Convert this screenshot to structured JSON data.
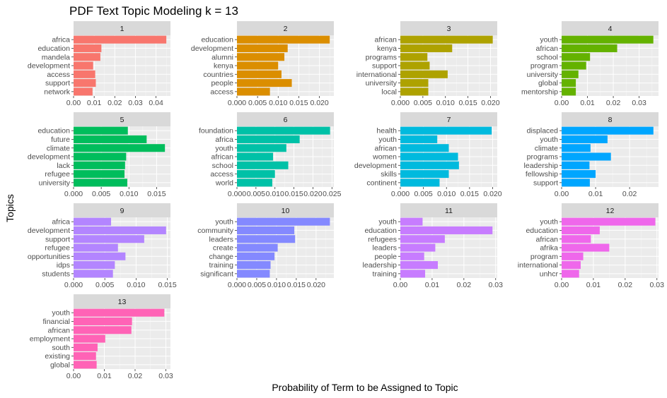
{
  "chart_data": {
    "type": "bar",
    "orientation": "horizontal",
    "title": "PDF Text Topic Modeling k = 13",
    "xlabel": "Probability of Term to be Assigned to Topic",
    "ylabel": "Topics",
    "grid": true,
    "panels": [
      {
        "label": "1",
        "color": "#F8766D",
        "xlim": [
          0,
          0.047
        ],
        "ticks": [
          0,
          0.01,
          0.02,
          0.03,
          0.04
        ],
        "tick_labels": [
          "0.00",
          "0.01",
          "0.02",
          "0.03",
          "0.04"
        ],
        "terms": [
          "africa",
          "education",
          "mandela",
          "development",
          "access",
          "support",
          "network"
        ],
        "values": [
          0.045,
          0.0135,
          0.013,
          0.0095,
          0.0105,
          0.0108,
          0.0092
        ]
      },
      {
        "label": "2",
        "color": "#DB8E00",
        "xlim": [
          0,
          0.0235
        ],
        "ticks": [
          0,
          0.005,
          0.01,
          0.015,
          0.02
        ],
        "tick_labels": [
          "0.000",
          "0.005",
          "0.010",
          "0.015",
          "0.020"
        ],
        "terms": [
          "education",
          "development",
          "alumni",
          "kenya",
          "countries",
          "people",
          "access"
        ],
        "values": [
          0.0225,
          0.0123,
          0.0115,
          0.01,
          0.0108,
          0.0133,
          0.008
        ]
      },
      {
        "label": "3",
        "color": "#AEA200",
        "xlim": [
          0,
          0.0215
        ],
        "ticks": [
          0,
          0.005,
          0.01,
          0.015,
          0.02
        ],
        "tick_labels": [
          "0.000",
          "0.005",
          "0.010",
          "0.015",
          "0.020"
        ],
        "terms": [
          "african",
          "kenya",
          "programs",
          "support",
          "international",
          "university",
          "local"
        ],
        "values": [
          0.0205,
          0.0115,
          0.006,
          0.0065,
          0.0105,
          0.0062,
          0.0062
        ]
      },
      {
        "label": "4",
        "color": "#64B200",
        "xlim": [
          0,
          0.0375
        ],
        "ticks": [
          0,
          0.01,
          0.02,
          0.03
        ],
        "tick_labels": [
          "0.00",
          "0.01",
          "0.02",
          "0.03"
        ],
        "terms": [
          "youth",
          "african",
          "school",
          "program",
          "university",
          "global",
          "mentorship"
        ],
        "values": [
          0.0355,
          0.0215,
          0.011,
          0.0095,
          0.0065,
          0.0055,
          0.0055
        ]
      },
      {
        "label": "5",
        "color": "#00BD5C",
        "xlim": [
          0,
          0.0175
        ],
        "ticks": [
          0,
          0.005,
          0.01,
          0.015
        ],
        "tick_labels": [
          "0.000",
          "0.005",
          "0.010",
          "0.015"
        ],
        "terms": [
          "education",
          "future",
          "climate",
          "development",
          "lack",
          "refugee",
          "university"
        ],
        "values": [
          0.0098,
          0.0132,
          0.0165,
          0.0095,
          0.0093,
          0.0092,
          0.0097
        ]
      },
      {
        "label": "6",
        "color": "#00C1A7",
        "xlim": [
          0,
          0.0255
        ],
        "ticks": [
          0,
          0.005,
          0.01,
          0.015,
          0.02,
          0.025
        ],
        "tick_labels": [
          "0.000",
          "0.005",
          "0.010",
          "0.015",
          "0.020",
          "0.025"
        ],
        "terms": [
          "foundation",
          "africa",
          "youth",
          "african",
          "school",
          "access",
          "world"
        ],
        "values": [
          0.0245,
          0.0165,
          0.013,
          0.0095,
          0.0135,
          0.01,
          0.0093
        ]
      },
      {
        "label": "7",
        "color": "#00BADE",
        "xlim": [
          0,
          0.021
        ],
        "ticks": [
          0,
          0.005,
          0.01,
          0.015,
          0.02
        ],
        "tick_labels": [
          "0.000",
          "0.005",
          "0.010",
          "0.015",
          "0.020"
        ],
        "terms": [
          "health",
          "youth",
          "african",
          "women",
          "development",
          "skills",
          "continent"
        ],
        "values": [
          0.0198,
          0.008,
          0.0105,
          0.0125,
          0.0127,
          0.0105,
          0.0085
        ]
      },
      {
        "label": "8",
        "color": "#00A6FF",
        "xlim": [
          0,
          0.0285
        ],
        "ticks": [
          0,
          0.01,
          0.02
        ],
        "tick_labels": [
          "0.00",
          "0.01",
          "0.02"
        ],
        "terms": [
          "displaced",
          "youth",
          "climate",
          "programs",
          "leadership",
          "fellowship",
          "support"
        ],
        "values": [
          0.027,
          0.0135,
          0.0085,
          0.0145,
          0.0082,
          0.01,
          0.0083
        ]
      },
      {
        "label": "9",
        "color": "#B385FF",
        "xlim": [
          0,
          0.0155
        ],
        "ticks": [
          0,
          0.005,
          0.01,
          0.015
        ],
        "tick_labels": [
          "0.000",
          "0.005",
          "0.010",
          "0.015"
        ],
        "terms": [
          "africa",
          "development",
          "support",
          "refugee",
          "opportunities",
          "idps",
          "students"
        ],
        "values": [
          0.006,
          0.0148,
          0.0113,
          0.0071,
          0.0083,
          0.0066,
          0.0063
        ]
      },
      {
        "label": "10",
        "color": "#8489FF",
        "xlim": [
          0,
          0.0245
        ],
        "ticks": [
          0,
          0.005,
          0.01,
          0.015,
          0.02
        ],
        "tick_labels": [
          "0.000",
          "0.005",
          "0.010",
          "0.015",
          "0.020"
        ],
        "terms": [
          "youth",
          "community",
          "leaders",
          "create",
          "change",
          "training",
          "significant"
        ],
        "values": [
          0.0235,
          0.0145,
          0.0147,
          0.0103,
          0.0095,
          0.0085,
          0.0083
        ]
      },
      {
        "label": "11",
        "color": "#C77CFF",
        "xlim": [
          0,
          0.0305
        ],
        "ticks": [
          0,
          0.01,
          0.02,
          0.03
        ],
        "tick_labels": [
          "0.00",
          "0.01",
          "0.02",
          "0.03"
        ],
        "terms": [
          "youth",
          "education",
          "refugees",
          "leaders",
          "people",
          "leadership",
          "training"
        ],
        "values": [
          0.007,
          0.029,
          0.014,
          0.011,
          0.0075,
          0.0118,
          0.0078
        ]
      },
      {
        "label": "12",
        "color": "#EF67EB",
        "xlim": [
          0,
          0.0305
        ],
        "ticks": [
          0,
          0.01,
          0.02,
          0.03
        ],
        "tick_labels": [
          "0.00",
          "0.01",
          "0.02",
          "0.03"
        ],
        "terms": [
          "youth",
          "education",
          "african",
          "afrika",
          "program",
          "international",
          "unhcr"
        ],
        "values": [
          0.0295,
          0.012,
          0.0092,
          0.015,
          0.0068,
          0.006,
          0.0055
        ]
      },
      {
        "label": "13",
        "color": "#FF63B6",
        "xlim": [
          0,
          0.0315
        ],
        "ticks": [
          0,
          0.01,
          0.02,
          0.03
        ],
        "tick_labels": [
          "0.00",
          "0.01",
          "0.02",
          "0.03"
        ],
        "terms": [
          "youth",
          "financial",
          "african",
          "employment",
          "south",
          "existing",
          "global"
        ],
        "values": [
          0.0295,
          0.019,
          0.0188,
          0.0103,
          0.0078,
          0.0073,
          0.0075
        ]
      }
    ]
  }
}
